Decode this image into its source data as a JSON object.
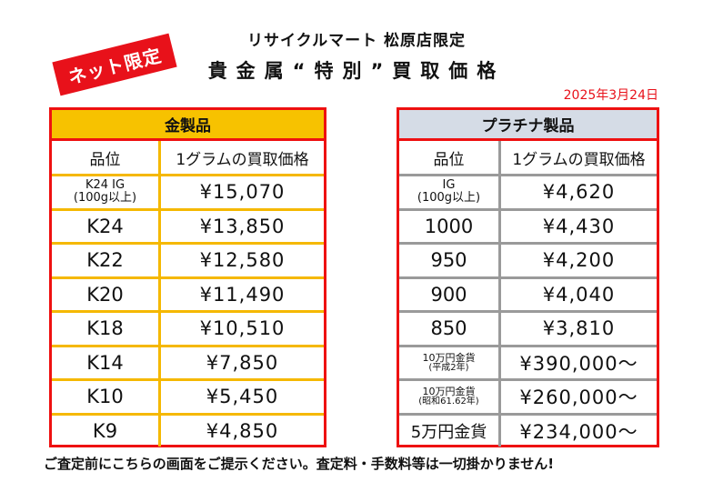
{
  "badge": "ネット限定",
  "shop_title": "リサイクルマート 松原店限定",
  "main_title": "貴金属“特別”買取価格",
  "date": "2025年3月24日",
  "gold": {
    "title": "金製品",
    "col_grade": "品位",
    "col_price": "1グラムの買取価格",
    "rows": [
      {
        "grade": "K24 IG",
        "grade_sub": "(100g以上)",
        "price": "¥15,070"
      },
      {
        "grade": "K24",
        "price": "¥13,850"
      },
      {
        "grade": "K22",
        "price": "¥12,580"
      },
      {
        "grade": "K20",
        "price": "¥11,490"
      },
      {
        "grade": "K18",
        "price": "¥10,510"
      },
      {
        "grade": "K14",
        "price": "¥7,850"
      },
      {
        "grade": "K10",
        "price": "¥5,450"
      },
      {
        "grade": "K9",
        "price": "¥4,850"
      }
    ]
  },
  "platinum": {
    "title": "プラチナ製品",
    "col_grade": "品位",
    "col_price": "1グラムの買取価格",
    "rows": [
      {
        "grade": "IG",
        "grade_sub": "(100g以上)",
        "price": "¥4,620"
      },
      {
        "grade": "1000",
        "price": "¥4,430"
      },
      {
        "grade": "950",
        "price": "¥4,200"
      },
      {
        "grade": "900",
        "price": "¥4,040"
      },
      {
        "grade": "850",
        "price": "¥3,810"
      },
      {
        "grade": "10万円金貨",
        "grade_sub": "(平成2年)",
        "price": "¥390,000〜"
      },
      {
        "grade": "10万円金貨",
        "grade_sub": "(昭和61.62年)",
        "price": "¥260,000〜"
      },
      {
        "grade": "5万円金貨",
        "price": "¥234,000〜"
      }
    ]
  },
  "footer": "ご査定前にこちらの画面をご提示ください。査定料・手数料等は一切掛かりません!"
}
